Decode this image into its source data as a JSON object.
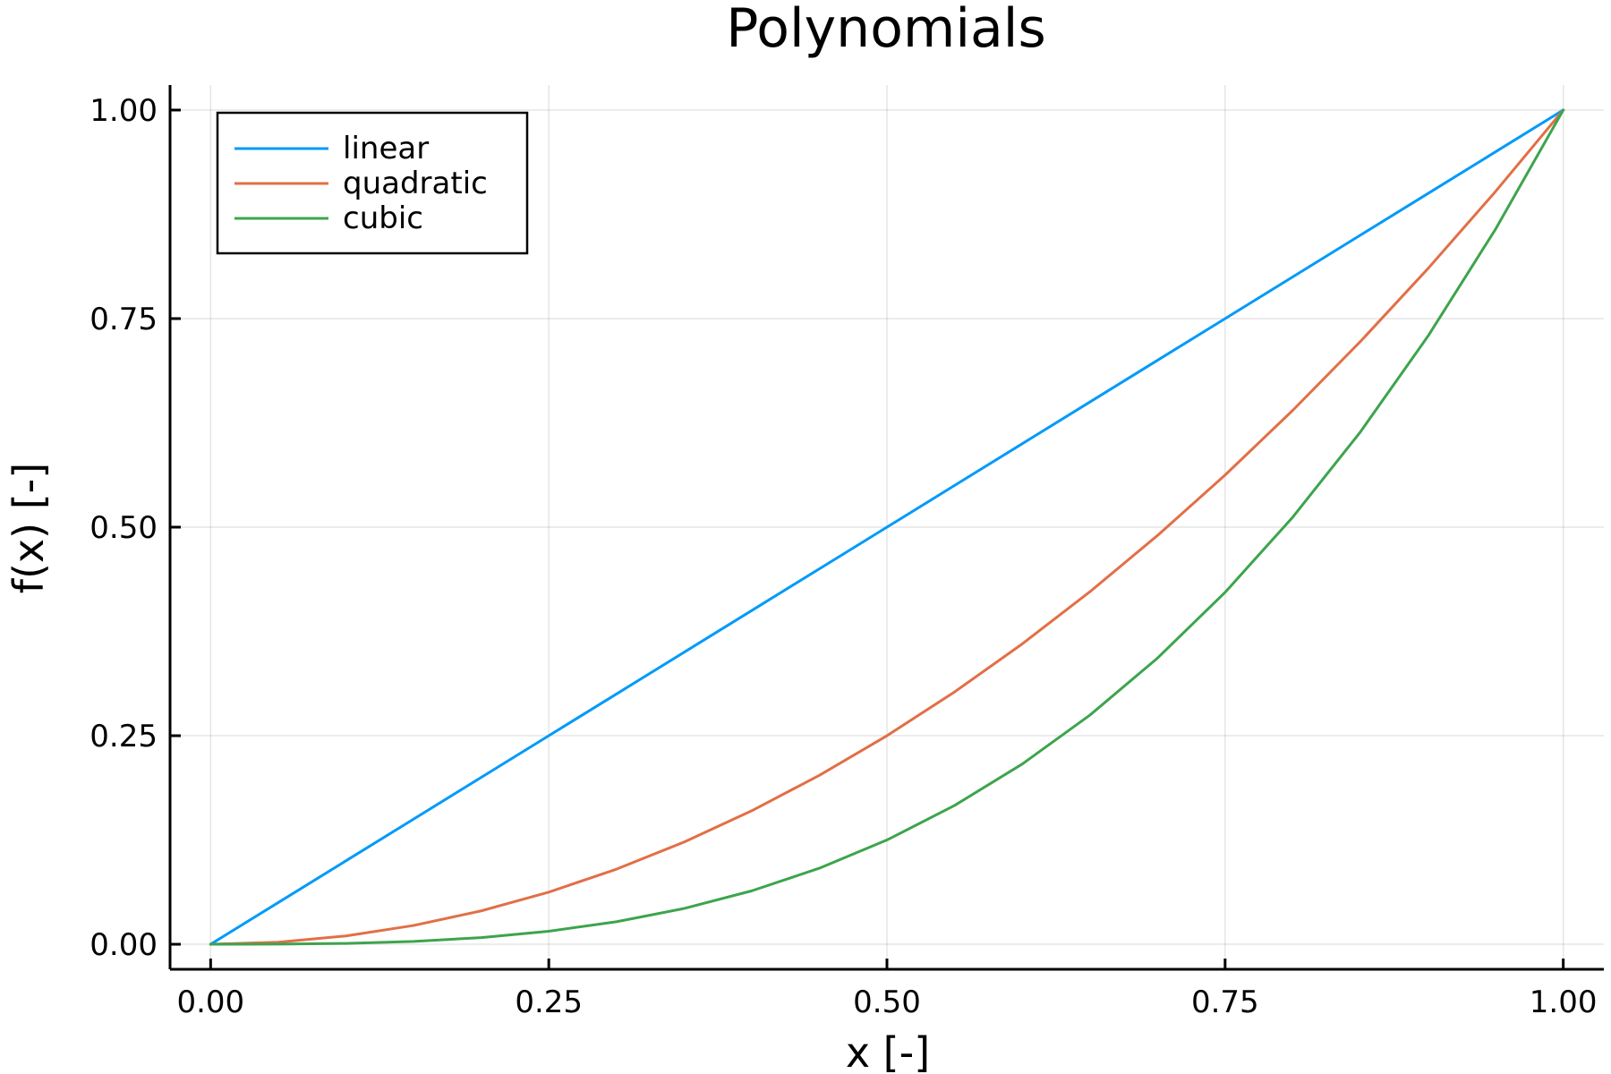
{
  "chart_data": {
    "type": "line",
    "title": "Polynomials",
    "xlabel": "x [-]",
    "ylabel": "f(x) [-]",
    "xlim": [
      -0.03,
      1.03
    ],
    "ylim": [
      -0.03,
      1.03
    ],
    "x_ticks": [
      0.0,
      0.25,
      0.5,
      0.75,
      1.0
    ],
    "x_tick_labels": [
      "0.00",
      "0.25",
      "0.50",
      "0.75",
      "1.00"
    ],
    "y_ticks": [
      0.0,
      0.25,
      0.5,
      0.75,
      1.0
    ],
    "y_tick_labels": [
      "0.00",
      "0.25",
      "0.50",
      "0.75",
      "1.00"
    ],
    "grid": true,
    "legend_position": "top-left",
    "x": [
      0.0,
      0.05,
      0.1,
      0.15,
      0.2,
      0.25,
      0.3,
      0.35,
      0.4,
      0.45,
      0.5,
      0.55,
      0.6,
      0.65,
      0.7,
      0.75,
      0.8,
      0.85,
      0.9,
      0.95,
      1.0
    ],
    "series": [
      {
        "name": "linear",
        "color": "#009af9",
        "values": [
          0.0,
          0.05,
          0.1,
          0.15,
          0.2,
          0.25,
          0.3,
          0.35,
          0.4,
          0.45,
          0.5,
          0.55,
          0.6,
          0.65,
          0.7,
          0.75,
          0.8,
          0.85,
          0.9,
          0.95,
          1.0
        ]
      },
      {
        "name": "quadratic",
        "color": "#e26f46",
        "values": [
          0.0,
          0.0025,
          0.01,
          0.0225,
          0.04,
          0.0625,
          0.09,
          0.1225,
          0.16,
          0.2025,
          0.25,
          0.3025,
          0.36,
          0.4225,
          0.49,
          0.5625,
          0.64,
          0.7225,
          0.81,
          0.9025,
          1.0
        ]
      },
      {
        "name": "cubic",
        "color": "#3da44d",
        "values": [
          0.0,
          0.000125,
          0.001,
          0.003375,
          0.008,
          0.015625,
          0.027,
          0.042875,
          0.064,
          0.091125,
          0.125,
          0.166375,
          0.216,
          0.274625,
          0.343,
          0.421875,
          0.512,
          0.614125,
          0.729,
          0.857375,
          1.0
        ]
      }
    ]
  }
}
